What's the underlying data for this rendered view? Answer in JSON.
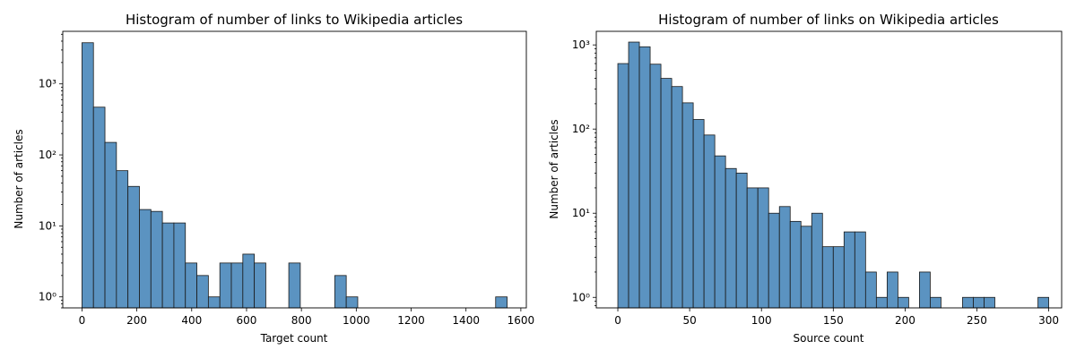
{
  "chart_data": [
    {
      "type": "bar",
      "title": "Histogram of number of links to Wikipedia articles",
      "xlabel": "Target count",
      "ylabel": "Number of articles",
      "yscale": "log",
      "grid": false,
      "xlim": [
        -70,
        1620
      ],
      "ylim": [
        0.7,
        5500
      ],
      "xticks": [
        0,
        200,
        400,
        600,
        800,
        1000,
        1200,
        1400,
        1600
      ],
      "xtick_labels": [
        "0",
        "200",
        "400",
        "600",
        "800",
        "1000",
        "1200",
        "1400",
        "1600"
      ],
      "yticks": [
        1,
        10,
        100,
        1000
      ],
      "ytick_labels": [
        "10⁰",
        "10¹",
        "10²",
        "10³"
      ],
      "bin_width": 41.89,
      "bin_start": 0,
      "values": [
        3800,
        470,
        150,
        60,
        36,
        17,
        16,
        11,
        11,
        3,
        2,
        1,
        3,
        3,
        4,
        3,
        0,
        0,
        3,
        0,
        0,
        0,
        2,
        1,
        0,
        0,
        0,
        0,
        0,
        0,
        0,
        0,
        0,
        0,
        0,
        0,
        1
      ]
    },
    {
      "type": "bar",
      "title": "Histogram of number of links on Wikipedia articles",
      "xlabel": "Source count",
      "ylabel": "Number of articles",
      "yscale": "log",
      "grid": false,
      "xlim": [
        -15,
        309
      ],
      "ylim": [
        0.75,
        1450
      ],
      "xticks": [
        0,
        50,
        100,
        150,
        200,
        250,
        300
      ],
      "xtick_labels": [
        "0",
        "50",
        "100",
        "150",
        "200",
        "250",
        "300"
      ],
      "yticks": [
        1,
        10,
        100,
        1000
      ],
      "ytick_labels": [
        "10⁰",
        "10¹",
        "10²",
        "10³"
      ],
      "bin_width": 7.5,
      "bin_start": 0,
      "values": [
        600,
        1080,
        950,
        590,
        400,
        320,
        205,
        130,
        85,
        48,
        34,
        30,
        20,
        20,
        10,
        12,
        8,
        7,
        10,
        4,
        4,
        6,
        6,
        2,
        1,
        2,
        1,
        0,
        2,
        1,
        0,
        0,
        1,
        1,
        1,
        0,
        0,
        0,
        0,
        1
      ]
    }
  ]
}
